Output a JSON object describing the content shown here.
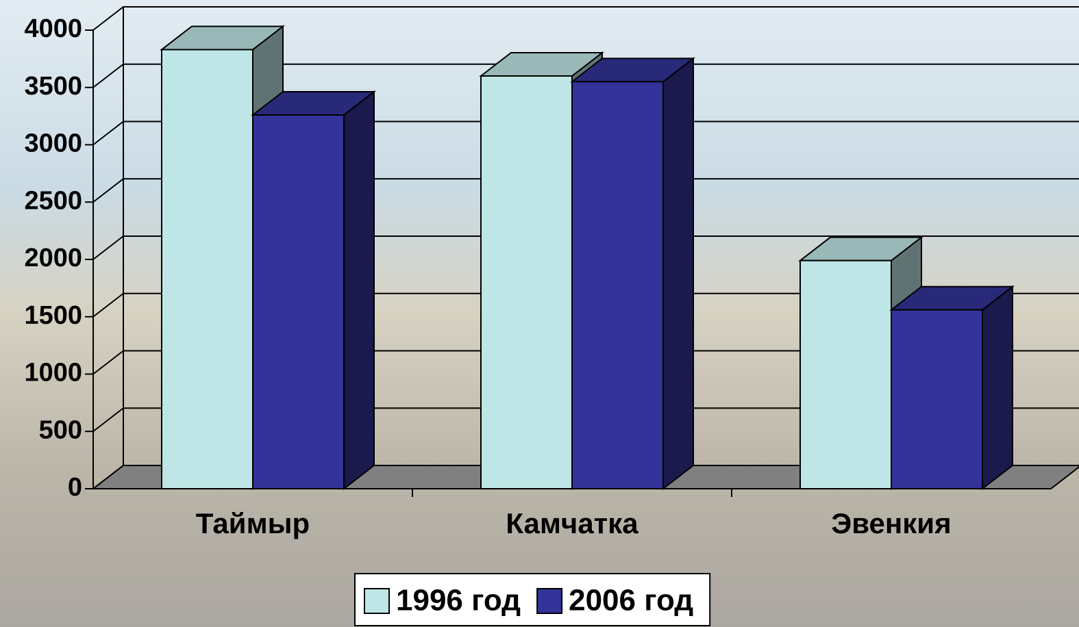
{
  "chart_data": {
    "type": "bar3d",
    "categories": [
      "Таймыр",
      "Камчатка",
      "Эвенкия"
    ],
    "series": [
      {
        "name": "1996 год",
        "color": "#bfe6e6",
        "values": [
          3830,
          3600,
          1990
        ]
      },
      {
        "name": "2006 год",
        "color": "#333399",
        "values": [
          3260,
          3550,
          1560
        ]
      }
    ],
    "ylim": [
      0,
      4000
    ],
    "yticks": [
      0,
      500,
      1000,
      1500,
      2000,
      2500,
      3000,
      3500,
      4000
    ],
    "grid": true,
    "legend": "bottom"
  }
}
